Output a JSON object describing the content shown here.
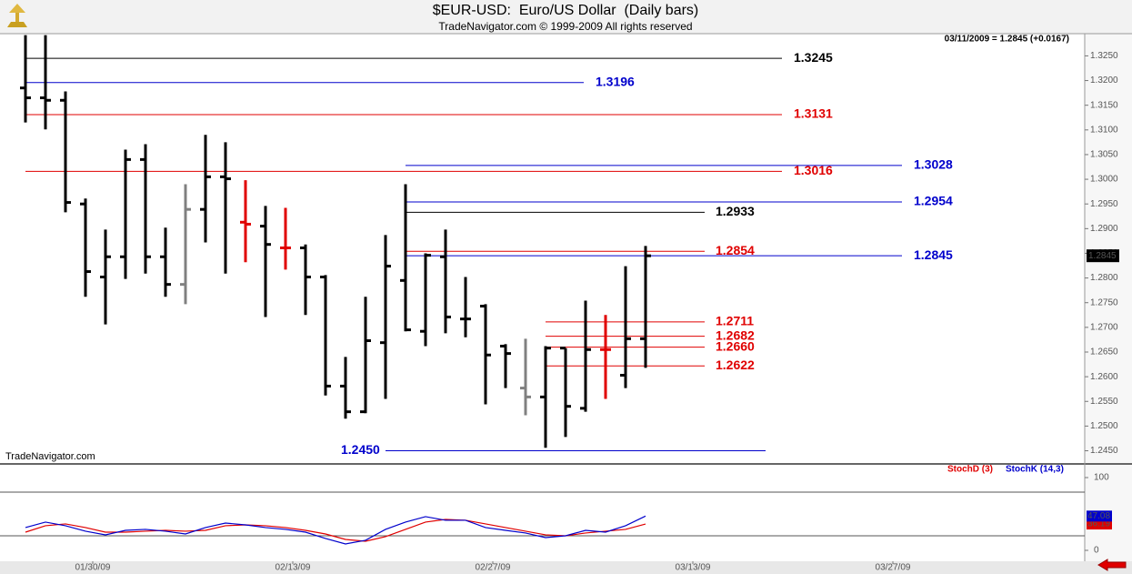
{
  "chart_data": [
    {
      "type": "ohlc",
      "title": "$EUR-USD:  Euro/US Dollar  (Daily bars)",
      "subtitle": "TradeNavigator.com © 1999-2009 All rights reserved",
      "annotation": "03/11/2009 = 1.2845 (+0.0167)",
      "watermark": "TradeNavigator.com",
      "categories": [
        null,
        null,
        null,
        "01/30/09",
        null,
        null,
        null,
        null,
        null,
        null,
        null,
        null,
        null,
        "02/13/09",
        null,
        null,
        null,
        null,
        null,
        null,
        null,
        null,
        null,
        "02/27/09",
        null,
        null,
        null,
        null,
        null,
        null,
        null,
        null,
        null,
        "03/13/09",
        null,
        null,
        null,
        null,
        null,
        null,
        null,
        null,
        null,
        "03/27/09",
        null,
        null,
        null,
        null,
        null,
        null,
        null,
        null,
        null
      ],
      "open": [
        1.3185,
        1.3165,
        1.316,
        1.295,
        1.2802,
        1.2843,
        1.304,
        1.2843,
        1.2787,
        1.2939,
        1.3005,
        1.2913,
        1.2905,
        1.2861,
        1.2861,
        1.2802,
        1.2581,
        1.2529,
        1.2669,
        1.2795,
        1.2692,
        1.2843,
        1.2717,
        1.2743,
        1.2662,
        1.2577,
        1.2559,
        1.2658,
        1.2536,
        1.2655,
        1.2603,
        1.2677,
        null,
        null,
        null,
        null,
        null,
        null,
        null,
        null,
        null,
        null,
        null,
        null,
        null,
        null,
        null,
        null,
        null,
        null,
        null,
        null,
        null
      ],
      "high": [
        1.3292,
        1.3292,
        1.3178,
        1.2961,
        1.2898,
        1.306,
        1.3071,
        1.2902,
        1.299,
        1.309,
        1.3075,
        1.2998,
        1.2946,
        1.2942,
        1.2868,
        1.2806,
        1.264,
        1.2762,
        1.2887,
        1.299,
        1.285,
        1.2898,
        1.2802,
        1.2747,
        1.2666,
        1.2677,
        1.2662,
        1.2658,
        1.2754,
        1.2725,
        1.2824,
        1.2865,
        null,
        null,
        null,
        null,
        null,
        null,
        null,
        null,
        null,
        null,
        null,
        null,
        null,
        null,
        null,
        null,
        null,
        null,
        null,
        null,
        null
      ],
      "low": [
        1.3115,
        1.3101,
        1.2933,
        1.2762,
        1.2706,
        1.2798,
        1.2809,
        1.2762,
        1.2747,
        1.2872,
        1.2809,
        1.2832,
        1.2721,
        1.2817,
        1.2725,
        1.2562,
        1.2515,
        1.2526,
        1.2555,
        1.2692,
        1.2662,
        1.2688,
        1.268,
        1.2544,
        1.2577,
        1.2522,
        1.2456,
        1.2478,
        1.2529,
        1.2555,
        1.2577,
        1.2618,
        null,
        null,
        null,
        null,
        null,
        null,
        null,
        null,
        null,
        null,
        null,
        null,
        null,
        null,
        null,
        null,
        null,
        null,
        null,
        null,
        null
      ],
      "close": [
        1.3165,
        1.316,
        1.2953,
        1.2813,
        1.2843,
        1.304,
        1.2843,
        1.2787,
        1.2939,
        1.3005,
        1.3001,
        1.2909,
        1.2868,
        1.2861,
        1.2802,
        1.2581,
        1.2529,
        1.2673,
        1.2824,
        1.2695,
        1.2846,
        1.2721,
        1.2717,
        1.2644,
        1.2647,
        1.2559,
        1.2658,
        1.254,
        1.2655,
        1.2655,
        1.2677,
        1.2845,
        null,
        null,
        null,
        null,
        null,
        null,
        null,
        null,
        null,
        null,
        null,
        null,
        null,
        null,
        null,
        null,
        null,
        null,
        null,
        null,
        null
      ],
      "colors": [
        "#000000",
        "#000000",
        "#000000",
        "#000000",
        "#000000",
        "#000000",
        "#000000",
        "#000000",
        "#808080",
        "#000000",
        "#000000",
        "#e00000",
        "#000000",
        "#e00000",
        "#000000",
        "#000000",
        "#000000",
        "#000000",
        "#000000",
        "#000000",
        "#000000",
        "#000000",
        "#000000",
        "#000000",
        "#000000",
        "#808080",
        "#000000",
        "#000000",
        "#000000",
        "#e00000",
        "#000000",
        "#000000",
        null,
        null,
        null,
        null,
        null,
        null,
        null,
        null,
        null,
        null,
        null,
        null,
        null,
        null,
        null,
        null,
        null,
        null,
        null,
        null,
        null
      ],
      "ylim": [
        1.2427,
        1.3295
      ],
      "yticks": [
        {
          "value": 1.245,
          "label": "1.2450"
        },
        {
          "value": 1.25,
          "label": "1.2500"
        },
        {
          "value": 1.255,
          "label": "1.2550"
        },
        {
          "value": 1.26,
          "label": "1.2600"
        },
        {
          "value": 1.265,
          "label": "1.2650"
        },
        {
          "value": 1.27,
          "label": "1.2700"
        },
        {
          "value": 1.275,
          "label": "1.2750"
        },
        {
          "value": 1.28,
          "label": "1.2800"
        },
        {
          "value": 1.285,
          "label": "1.2850"
        },
        {
          "value": 1.29,
          "label": "1.2900"
        },
        {
          "value": 1.295,
          "label": "1.2950"
        },
        {
          "value": 1.3,
          "label": "1.3000"
        },
        {
          "value": 1.305,
          "label": "1.3050"
        },
        {
          "value": 1.31,
          "label": "1.3100"
        },
        {
          "value": 1.315,
          "label": "1.3150"
        },
        {
          "value": 1.32,
          "label": "1.3200"
        },
        {
          "value": 1.325,
          "label": "1.3250"
        }
      ],
      "levels": [
        {
          "value": 1.3245,
          "label": "1.3245",
          "color": "#000000"
        },
        {
          "value": 1.3196,
          "label": "1.3196",
          "color": "#0000cc"
        },
        {
          "value": 1.3131,
          "label": "1.3131",
          "color": "#e00000"
        },
        {
          "value": 1.3016,
          "label": "1.3016",
          "color": "#e00000"
        },
        {
          "value": 1.3028,
          "label": "1.3028",
          "color": "#0000cc"
        },
        {
          "value": 1.2954,
          "label": "1.2954",
          "color": "#0000cc"
        },
        {
          "value": 1.2933,
          "label": "1.2933",
          "color": "#000000"
        },
        {
          "value": 1.2854,
          "label": "1.2854",
          "color": "#e00000"
        },
        {
          "value": 1.2845,
          "label": "1.2845",
          "color": "#0000cc"
        },
        {
          "value": 1.2711,
          "label": "1.2711",
          "color": "#e00000"
        },
        {
          "value": 1.2682,
          "label": "1.2682",
          "color": "#e00000"
        },
        {
          "value": 1.266,
          "label": "1.2660",
          "color": "#e00000"
        },
        {
          "value": 1.2622,
          "label": "1.2622",
          "color": "#e00000"
        },
        {
          "value": 1.245,
          "label": "1.2450",
          "color": "#0000cc"
        }
      ]
    },
    {
      "type": "line",
      "series": [
        {
          "name": "StochD (3)",
          "color": "#e00000",
          "values": [
            25,
            33.8,
            36.3,
            31.3,
            25,
            25,
            26.3,
            27.5,
            26.3,
            27.5,
            33.8,
            35,
            33.8,
            31.3,
            27.5,
            22.5,
            15,
            12.5,
            18.8,
            28.8,
            38.8,
            42.5,
            41.3,
            36.3,
            31.3,
            26.3,
            21.3,
            20,
            23.8,
            26.3,
            28.8,
            36.19,
            null,
            null,
            null,
            null,
            null,
            null,
            null,
            null,
            null,
            null,
            null,
            null,
            null,
            null,
            null,
            null,
            null,
            null,
            null,
            null,
            null
          ]
        },
        {
          "name": "StochK (14,3)",
          "color": "#0000cc",
          "values": [
            31.3,
            38.8,
            33.8,
            26.3,
            21.3,
            27.5,
            28.8,
            26.3,
            22.5,
            31.3,
            37.5,
            35,
            31.3,
            28.8,
            25,
            16.3,
            8.8,
            13.8,
            28.8,
            38.8,
            46.3,
            41.3,
            41.3,
            31.3,
            27.5,
            23.8,
            17.5,
            20,
            27.5,
            25,
            33.8,
            47.08,
            null,
            null,
            null,
            null,
            null,
            null,
            null,
            null,
            null,
            null,
            null,
            null,
            null,
            null,
            null,
            null,
            null,
            null,
            null,
            null,
            null
          ]
        }
      ],
      "ylim": [
        -15,
        115
      ],
      "yticks": [
        0,
        100
      ],
      "hlines": [
        20,
        80
      ]
    }
  ]
}
